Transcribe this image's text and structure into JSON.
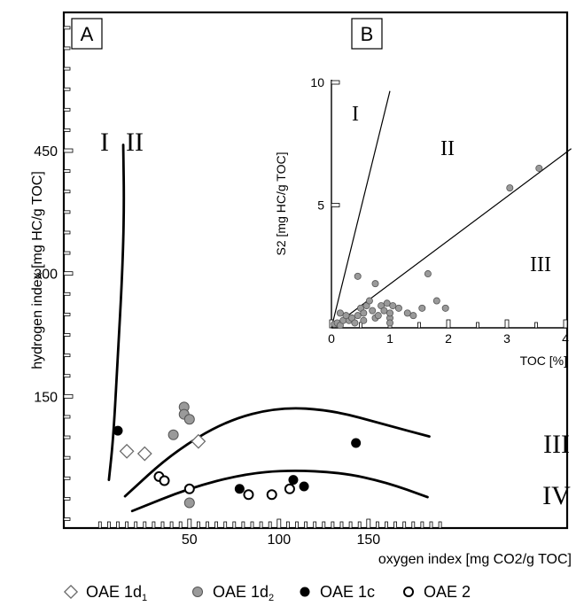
{
  "chart_data": [
    {
      "panel_label": "A",
      "type": "scatter",
      "xlabel": "oxygen index  [mg CO2/g TOC]",
      "ylabel": "hydrogen index  [mg HC/g TOC]",
      "xlim": [
        0,
        190
      ],
      "ylim": [
        0,
        600
      ],
      "xticks": [
        50,
        100,
        150
      ],
      "yticks": [
        150,
        300,
        450
      ],
      "kerogen_labels": [
        "I",
        "II",
        "III",
        "IV"
      ],
      "series": [
        {
          "name": "OAE 1d1",
          "marker": "diamond-open",
          "points": [
            [
              15,
              83
            ],
            [
              25,
              80
            ],
            [
              55,
              95
            ]
          ]
        },
        {
          "name": "OAE 1d2",
          "marker": "circle-grey",
          "points": [
            [
              47,
              137
            ],
            [
              47,
              128
            ],
            [
              50,
              122
            ],
            [
              41,
              103
            ],
            [
              50,
              20
            ]
          ]
        },
        {
          "name": "OAE 1c",
          "marker": "circle-filled",
          "points": [
            [
              10,
              108
            ],
            [
              78,
              37
            ],
            [
              108,
              48
            ],
            [
              114,
              40
            ],
            [
              143,
              93
            ]
          ]
        },
        {
          "name": "OAE 2",
          "marker": "circle-open",
          "points": [
            [
              33,
              52
            ],
            [
              36,
              47
            ],
            [
              50,
              37
            ],
            [
              83,
              30
            ],
            [
              96,
              30
            ],
            [
              106,
              37
            ]
          ]
        }
      ]
    },
    {
      "panel_label": "B",
      "type": "scatter",
      "xlabel": "TOC [%]",
      "ylabel": "S2 [mg HC/g TOC]",
      "xlim": [
        0,
        4
      ],
      "ylim": [
        0,
        10
      ],
      "xticks": [
        0,
        1,
        2,
        3,
        4
      ],
      "yticks": [
        5,
        10
      ],
      "kerogen_labels": [
        "I",
        "II",
        "III"
      ],
      "points": [
        [
          0.05,
          0.15
        ],
        [
          0.1,
          0.2
        ],
        [
          0.15,
          0.1
        ],
        [
          0.2,
          0.3
        ],
        [
          0.3,
          0.3
        ],
        [
          0.35,
          0.4
        ],
        [
          0.4,
          0.2
        ],
        [
          0.45,
          0.5
        ],
        [
          0.5,
          0.8
        ],
        [
          0.55,
          0.6
        ],
        [
          0.6,
          0.9
        ],
        [
          0.65,
          1.1
        ],
        [
          0.7,
          0.7
        ],
        [
          0.75,
          0.4
        ],
        [
          0.8,
          0.5
        ],
        [
          0.85,
          0.9
        ],
        [
          0.9,
          0.7
        ],
        [
          0.95,
          1.0
        ],
        [
          1.0,
          0.4
        ],
        [
          1.0,
          0.6
        ],
        [
          1.0,
          0.2
        ],
        [
          1.05,
          0.9
        ],
        [
          1.15,
          0.8
        ],
        [
          1.3,
          0.6
        ],
        [
          1.4,
          0.5
        ],
        [
          1.55,
          0.8
        ],
        [
          1.65,
          2.2
        ],
        [
          1.8,
          1.1
        ],
        [
          1.95,
          0.8
        ],
        [
          0.45,
          2.1
        ],
        [
          0.75,
          1.8
        ],
        [
          0.55,
          0.3
        ],
        [
          0.25,
          0.5
        ],
        [
          0.15,
          0.6
        ],
        [
          3.05,
          5.7
        ],
        [
          3.55,
          6.5
        ]
      ]
    }
  ],
  "legend": [
    {
      "marker": "diamond-open",
      "label": "OAE 1d",
      "sub": "1"
    },
    {
      "marker": "circle-grey",
      "label": "OAE 1d",
      "sub": "2"
    },
    {
      "marker": "circle-filled",
      "label": "OAE 1c",
      "sub": ""
    },
    {
      "marker": "circle-open",
      "label": "OAE 2",
      "sub": ""
    }
  ]
}
